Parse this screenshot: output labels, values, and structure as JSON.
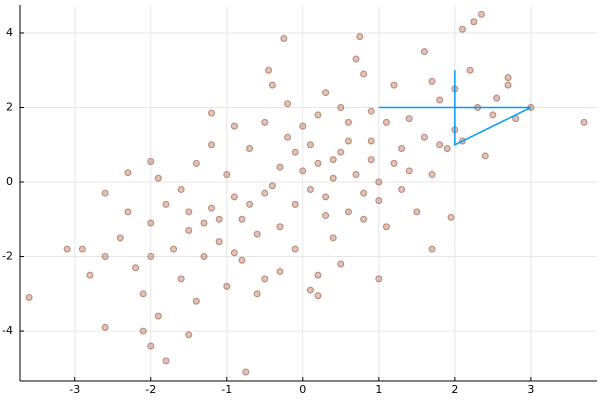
{
  "chart_data": {
    "type": "scatter",
    "xlim": [
      -3.72,
      3.87
    ],
    "ylim": [
      -5.34,
      4.75
    ],
    "xticks": [
      -3,
      -2,
      -1,
      0,
      1,
      2,
      3
    ],
    "yticks": [
      -4,
      -2,
      0,
      2,
      4
    ],
    "grid": true,
    "series": [
      {
        "mode": "markers",
        "color": "#8b3a1f",
        "x": [
          -0.5,
          0.2,
          -0.1,
          0.4,
          -0.8,
          0.9,
          -0.3,
          0.1,
          0.6,
          -1.2,
          1.3,
          -0.6,
          0.3,
          -0.2,
          0.8,
          -1.0,
          1.1,
          -1.5,
          0.5,
          -0.4,
          0.0,
          0.7,
          -0.9,
          1.6,
          -1.7,
          0.2,
          -0.7,
          1.0,
          -1.3,
          0.4,
          1.8,
          -2.0,
          0.9,
          -0.1,
          1.4,
          -1.1,
          0.6,
          -0.5,
          2.0,
          -1.8,
          0.3,
          -0.3,
          1.2,
          -1.4,
          1.7,
          -2.2,
          2.3,
          0.1,
          -0.9,
          1.5,
          -1.6,
          0.8,
          -2.4,
          2.5,
          -0.2,
          0.5,
          -1.0,
          1.9,
          -2.6,
          1.1,
          -1.9,
          2.2,
          -0.6,
          0.0,
          1.3,
          -1.2,
          0.7,
          -2.8,
          2.7,
          -0.4,
          1.6,
          -1.4,
          0.2,
          2.0,
          -2.1,
          1.0,
          -0.8,
          0.6,
          -1.6,
          1.4,
          -0.3,
          0.4,
          -0.7,
          0.9,
          -1.1,
          1.2,
          -0.1,
          0.3,
          -1.3,
          1.8,
          -0.9,
          0.5,
          -2.0,
          2.1,
          -1.5,
          0.1,
          -0.5,
          1.7,
          -2.3,
          0.8,
          -3.6,
          -3.1,
          -2.9,
          -2.6,
          -2.6,
          -2.3,
          -2.0,
          -1.8,
          -1.5,
          -0.75,
          3.7,
          2.35,
          2.25,
          2.1,
          3.0,
          2.8,
          0.75,
          -0.25,
          2.7,
          2.55,
          -2.0,
          -1.2,
          -0.45,
          1.95,
          1.0,
          2.4,
          0.2,
          -1.9,
          -2.1,
          1.7
        ],
        "y": [
          -0.3,
          0.5,
          -0.6,
          0.1,
          -1.0,
          0.6,
          0.4,
          -0.2,
          1.1,
          -0.7,
          0.9,
          -1.4,
          -0.9,
          1.2,
          -0.3,
          0.2,
          1.6,
          -1.3,
          0.8,
          -0.1,
          0.3,
          0.2,
          -0.4,
          1.2,
          -1.8,
          1.8,
          0.9,
          -0.5,
          -2.0,
          -1.5,
          2.2,
          -1.1,
          1.9,
          -1.8,
          0.3,
          -1.6,
          -0.8,
          1.6,
          1.4,
          -0.6,
          2.4,
          -2.4,
          2.6,
          0.5,
          0.2,
          -2.3,
          2.0,
          -2.9,
          1.5,
          -0.8,
          -2.6,
          2.9,
          -1.5,
          1.8,
          2.1,
          -2.2,
          -2.8,
          0.9,
          -2.0,
          -1.2,
          0.1,
          3.0,
          -3.0,
          1.5,
          -0.2,
          1.0,
          3.3,
          -2.5,
          2.6,
          2.6,
          3.5,
          -3.2,
          -2.5,
          2.5,
          -3.0,
          0.0,
          -2.1,
          1.6,
          -0.2,
          1.7,
          -1.2,
          0.6,
          -0.6,
          1.1,
          -1.0,
          0.5,
          0.8,
          -0.4,
          -1.1,
          1.0,
          -1.9,
          2.0,
          -2.0,
          1.1,
          -0.8,
          1.0,
          -2.6,
          2.7,
          -0.8,
          -1.0,
          -3.1,
          -1.8,
          -1.8,
          -3.9,
          -0.3,
          0.25,
          -4.4,
          -4.8,
          -4.1,
          -5.1,
          1.6,
          4.5,
          4.3,
          4.1,
          2.0,
          1.7,
          3.9,
          3.85,
          2.8,
          2.25,
          0.55,
          1.85,
          3.0,
          -0.95,
          -2.6,
          0.7,
          -3.05,
          -3.6,
          -4.0,
          -1.8
        ]
      },
      {
        "mode": "line",
        "color": "#009af9",
        "x": [
          1,
          3,
          2,
          2
        ],
        "y": [
          2,
          2,
          1,
          3
        ]
      }
    ]
  }
}
